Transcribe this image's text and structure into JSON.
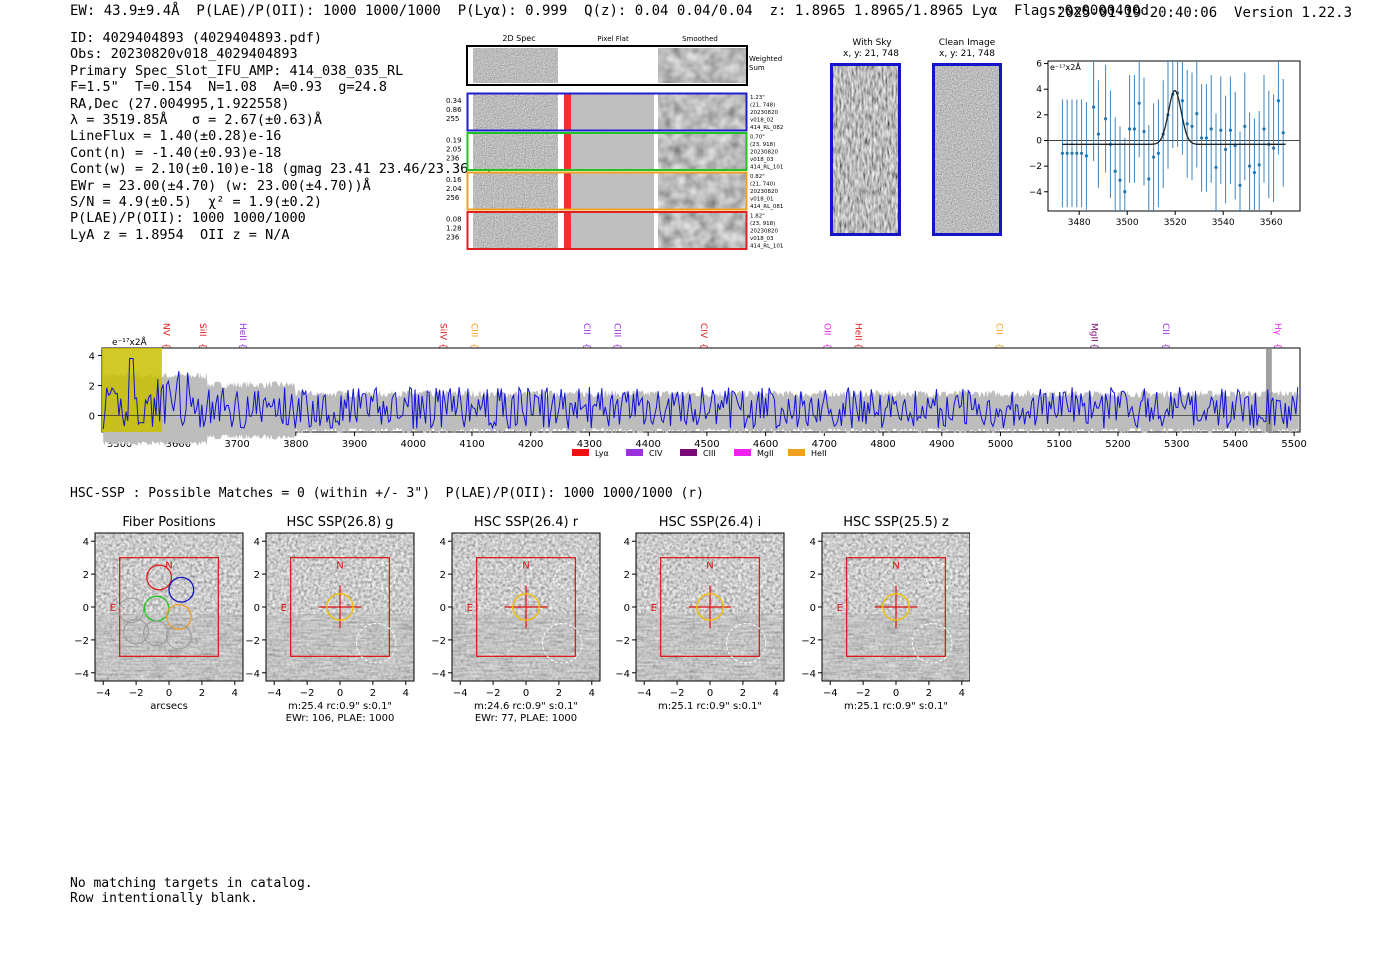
{
  "header": {
    "left": "EW: 43.9±9.4Å  P(LAE)/P(OII): 1000 1000/1000  P(Lyα): 0.999  Q(z): 0.04 0.04/0.04  z: 1.8965 1.8965/1.8965 Lyα  Flags:0x0000400d",
    "datetime": "2025-01-19 20:40:06",
    "version": "Version 1.22.3"
  },
  "info": {
    "id": "ID: 4029404893 (4029404893.pdf)",
    "obs": "Obs: 20230820v018_4029404893",
    "primary": "Primary Spec_Slot_IFU_AMP: 414_038_035_RL",
    "fiber": "F=1.5\"  T=0.154  N=1.08  A=0.93  g=24.8",
    "radec": "RA,Dec (27.004995,1.922558)",
    "lambda": "λ = 3519.85Å   σ = 2.67(±0.63)Å",
    "lineflux": "LineFlux = 1.40(±0.28)e-16",
    "contn": "Cont(n) = -1.40(±0.93)e-18",
    "contw": "Cont(w) = 2.10(±0.10)e-18 (gmag 23.41 23.46/23.36 *)",
    "ewr": "EWr = 23.00(±4.70) (w: 23.00(±4.70))Å",
    "sn": "S/N = 4.9(±0.5)  χ² = 1.9(±0.2)",
    "plae": "P(LAE)/P(OII): 1000 1000/1000",
    "lyaz": "LyA z = 1.8954  OII z = N/A"
  },
  "cutouts": {
    "col_labels": [
      "2D Spec",
      "Pixel Flat",
      "Smoothed"
    ],
    "weighted": [
      "Weighted",
      "Sum"
    ],
    "rows": [
      {
        "vals": [
          "0.34",
          "0.86",
          "255"
        ],
        "meta": [
          "1.23\"",
          "(21, 748)",
          "20230820",
          "v018_02",
          "414_RL_082"
        ],
        "color": "#1f1fd0"
      },
      {
        "vals": [
          "0.19",
          "2.05",
          "236"
        ],
        "meta": [
          "0.70\"",
          "(23, 918)",
          "20230820",
          "v018_03",
          "414_RL_101"
        ],
        "color": "#22c422"
      },
      {
        "vals": [
          "0.16",
          "2.04",
          "256"
        ],
        "meta": [
          "0.82\"",
          "(21, 740)",
          "20230820",
          "v018_01",
          "414_RL_081"
        ],
        "color": "#f0a020"
      },
      {
        "vals": [
          "0.08",
          "1.28",
          "236"
        ],
        "meta": [
          "1.82\"",
          "(23, 918)",
          "20230820",
          "v018_03",
          "414_RL_101"
        ],
        "color": "#e02020"
      }
    ]
  },
  "sky": {
    "title": "With Sky",
    "coords": "x, y: 21, 748"
  },
  "clean": {
    "title": "Clean Image",
    "coords": "x, y: 21, 748"
  },
  "zoom_chart": {
    "type": "scatter",
    "label": "e⁻¹⁷x2Å",
    "xticks": [
      "3480",
      "3500",
      "3520",
      "3540",
      "3560"
    ],
    "yticks": [
      "6",
      "4",
      "2",
      "0",
      "−2",
      "−4"
    ],
    "xlim": [
      3467,
      3572
    ],
    "ylim": [
      -5.5,
      6.2
    ],
    "points": [
      [
        3473,
        -1.0
      ],
      [
        3475,
        -1.0
      ],
      [
        3477,
        -1.0
      ],
      [
        3479,
        -1.0
      ],
      [
        3481,
        -1.0
      ],
      [
        3483,
        -1.2
      ],
      [
        3486,
        2.6
      ],
      [
        3488,
        0.5
      ],
      [
        3491,
        1.7
      ],
      [
        3493,
        -0.3
      ],
      [
        3495,
        -2.4
      ],
      [
        3497,
        -3.1
      ],
      [
        3499,
        -4.0
      ],
      [
        3501,
        0.9
      ],
      [
        3503,
        0.9
      ],
      [
        3505,
        2.9
      ],
      [
        3507,
        0.7
      ],
      [
        3509,
        -3.0
      ],
      [
        3511,
        -1.3
      ],
      [
        3513,
        -1.0
      ],
      [
        3515,
        0.5
      ],
      [
        3517,
        2.0
      ],
      [
        3519,
        3.6
      ],
      [
        3521,
        3.7
      ],
      [
        3523,
        3.1
      ],
      [
        3525,
        1.3
      ],
      [
        3527,
        1.1
      ],
      [
        3529,
        2.1
      ],
      [
        3531,
        0.2
      ],
      [
        3533,
        0.2
      ],
      [
        3535,
        0.9
      ],
      [
        3537,
        -2.1
      ],
      [
        3539,
        0.8
      ],
      [
        3541,
        -0.7
      ],
      [
        3543,
        0.8
      ],
      [
        3545,
        -0.4
      ],
      [
        3547,
        -3.5
      ],
      [
        3549,
        1.1
      ],
      [
        3551,
        -2.0
      ],
      [
        3553,
        -2.5
      ],
      [
        3555,
        -1.9
      ],
      [
        3557,
        0.9
      ],
      [
        3559,
        -0.3
      ],
      [
        3561,
        -0.6
      ],
      [
        3563,
        3.1
      ],
      [
        3565,
        0.6
      ]
    ],
    "fit": {
      "center": 3519.85,
      "sigma": 2.67,
      "amp": 4.2,
      "base": -0.3
    }
  },
  "spectrum": {
    "type": "line",
    "scale_label": "e⁻¹⁷x2Å",
    "xlim": [
      3470,
      5510
    ],
    "ylim": [
      -1.1,
      4.5
    ],
    "xticks": [
      "3500",
      "3600",
      "3700",
      "3800",
      "3900",
      "4000",
      "4100",
      "4200",
      "4300",
      "4400",
      "4500",
      "4600",
      "4700",
      "4800",
      "4900",
      "5000",
      "5100",
      "5200",
      "5300",
      "5400",
      "5500"
    ],
    "yticks": [
      "4",
      "2",
      "0"
    ],
    "lines": [
      {
        "name": "NV",
        "x": 3570,
        "color": "#e02020"
      },
      {
        "name": "SiII",
        "x": 3632,
        "color": "#e02020"
      },
      {
        "name": "HeII",
        "x": 3700,
        "color": "#9a30e0"
      },
      {
        "name": "SiIV",
        "x": 4041,
        "color": "#e02020"
      },
      {
        "name": "CIII",
        "x": 4094,
        "color": "#f0a020"
      },
      {
        "name": "CII",
        "x": 4286,
        "color": "#9a30e0"
      },
      {
        "name": "CIII",
        "x": 4338,
        "color": "#9a30e0"
      },
      {
        "name": "CIV",
        "x": 4485,
        "color": "#e02020"
      },
      {
        "name": "OII",
        "x": 4695,
        "color": "#ee22ee"
      },
      {
        "name": "HeII",
        "x": 4748,
        "color": "#e02020"
      },
      {
        "name": "CII",
        "x": 4988,
        "color": "#f0a020"
      },
      {
        "name": "MgII",
        "x": 5150,
        "color": "#7a0a7a"
      },
      {
        "name": "CII",
        "x": 5272,
        "color": "#9a30e0"
      },
      {
        "name": "Hγ",
        "x": 5462,
        "color": "#ee22ee"
      }
    ],
    "legend": [
      {
        "name": "Lyα",
        "color": "#f01010"
      },
      {
        "name": "CIV",
        "color": "#9a30e0"
      },
      {
        "name": "CIII",
        "color": "#7a0a7a"
      },
      {
        "name": "MgII",
        "color": "#ee22ee"
      },
      {
        "name": "HeII",
        "color": "#f0a020"
      }
    ]
  },
  "hsc": {
    "header": "HSC-SSP : Possible Matches = 0 (within +/- 3\")  P(LAE)/P(OII): 1000 1000/1000 (r)",
    "panels": [
      {
        "title": "Fiber Positions",
        "cap1": "arcsecs",
        "cap2": ""
      },
      {
        "title": "HSC SSP(26.8) g",
        "cap1": "m:25.4 rc:0.9\"  s:0.1\"",
        "cap2": "EWr: 106, PLAE: 1000"
      },
      {
        "title": "HSC SSP(26.4) r",
        "cap1": "m:24.6 rc:0.9\"  s:0.1\"",
        "cap2": "EWr: 77, PLAE: 1000"
      },
      {
        "title": "HSC SSP(26.4) i",
        "cap1": "m:25.1 rc:0.9\"  s:0.1\"",
        "cap2": ""
      },
      {
        "title": "HSC SSP(25.5) z",
        "cap1": "m:25.1 rc:0.9\"  s:0.1\"",
        "cap2": ""
      }
    ],
    "ticks": [
      "4",
      "2",
      "0",
      "−2",
      "−4"
    ],
    "xticks": [
      "−4",
      "−2",
      "0",
      "2",
      "4"
    ],
    "compass": {
      "n": "N",
      "e": "E"
    }
  },
  "footer": {
    "line1": "No matching targets in catalog.",
    "line2": "Row intentionally blank."
  }
}
